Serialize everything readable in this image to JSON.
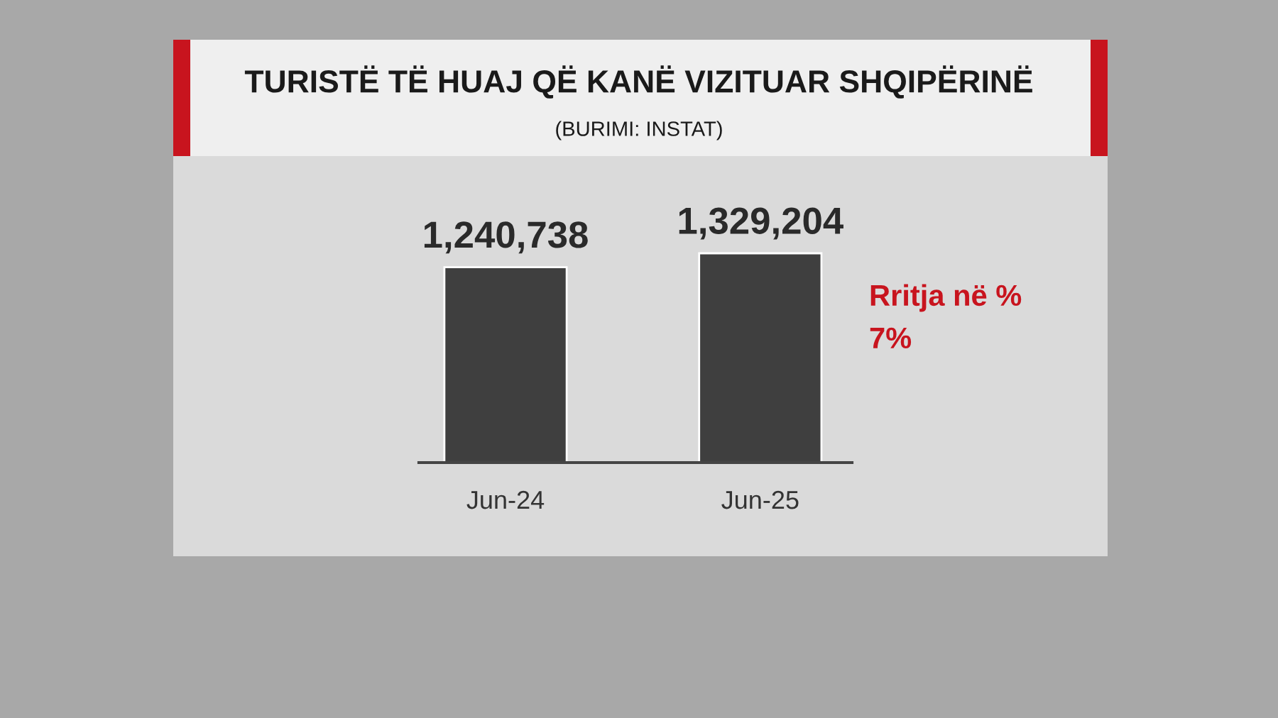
{
  "chart_data": {
    "type": "bar",
    "title": "TURISTË TË HUAJ QË KANË VIZITUAR SHQIPËRINË",
    "subtitle": "(BURIMI: INSTAT)",
    "categories": [
      "Jun-24",
      "Jun-25"
    ],
    "values": [
      1240738,
      1329204
    ],
    "value_labels": [
      "1,240,738",
      "1,329,204"
    ],
    "color": "#3f3f3f",
    "tick_labels": "x",
    "grid": false,
    "annotations": [
      "Rritja në %",
      "7%"
    ]
  }
}
